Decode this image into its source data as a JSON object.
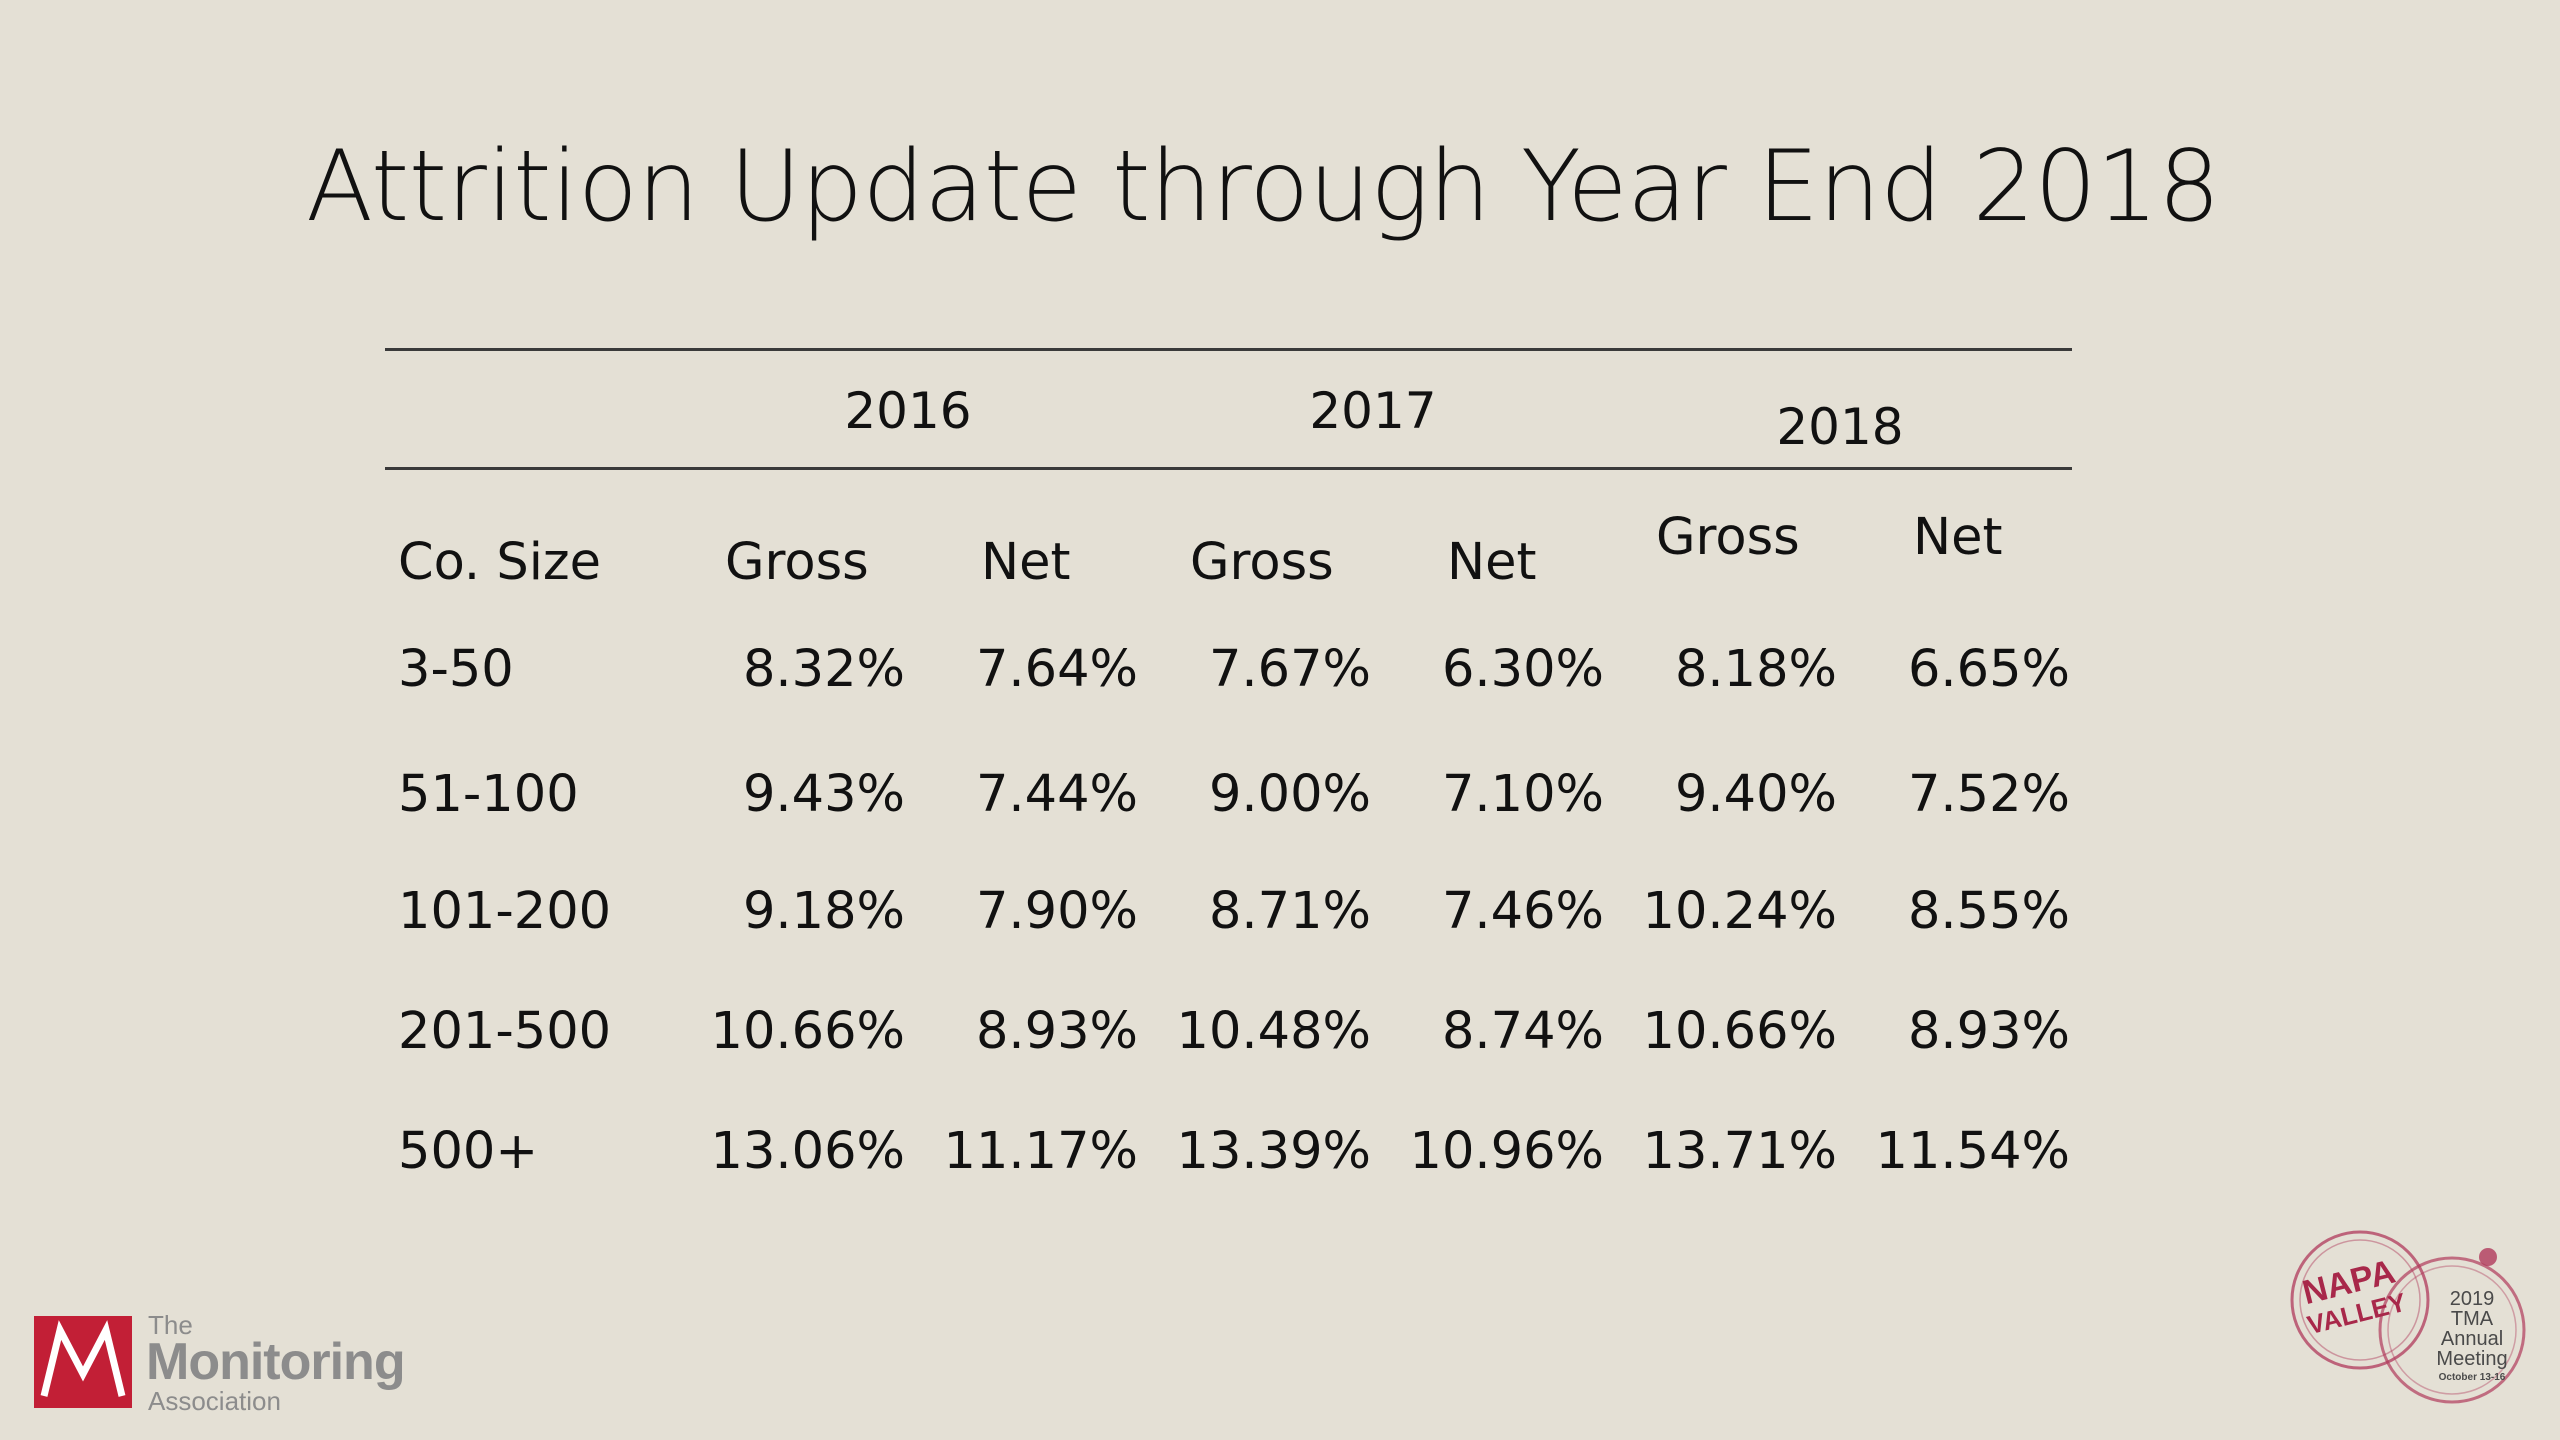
{
  "slide": {
    "title": "Attrition Update through Year End 2018"
  },
  "table": {
    "years": [
      "2016",
      "2017",
      "2018"
    ],
    "subheaders": [
      "Co. Size",
      "Gross",
      "Net",
      "Gross",
      "Net",
      "Gross",
      "Net"
    ],
    "rows": [
      [
        "3-50",
        "8.32%",
        "7.64%",
        "7.67%",
        "6.30%",
        "8.18%",
        "6.65%"
      ],
      [
        "51-100",
        "9.43%",
        "7.44%",
        "9.00%",
        "7.10%",
        "9.40%",
        "7.52%"
      ],
      [
        "101-200",
        "9.18%",
        "7.90%",
        "8.71%",
        "7.46%",
        "10.24%",
        "8.55%"
      ],
      [
        "201-500",
        "10.66%",
        "8.93%",
        "10.48%",
        "8.74%",
        "10.66%",
        "8.93%"
      ],
      [
        "500+",
        "13.06%",
        "11.17%",
        "13.39%",
        "10.96%",
        "13.71%",
        "11.54%"
      ]
    ]
  },
  "logo": {
    "the": "The",
    "monitoring": "Monitoring",
    "association": "Association"
  },
  "stamp": {
    "napa": "NAPA",
    "valley": "VALLEY",
    "year": "2019",
    "org": "TMA",
    "annual": "Annual",
    "meeting": "Meeting",
    "dates": "October 13-16"
  },
  "colors": {
    "background": "#e4e0d5",
    "logo_red": "#c21f36",
    "logo_gray": "#8c8c8c",
    "stamp": "#b03a5b"
  }
}
